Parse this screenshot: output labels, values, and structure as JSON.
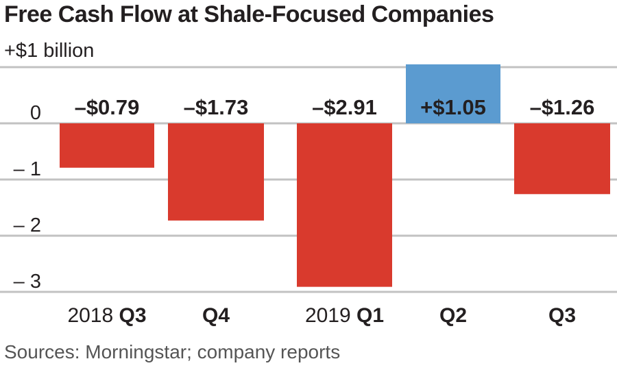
{
  "chart_data": {
    "type": "bar",
    "title": "Free Cash Flow at Shale-Focused Companies",
    "ylabel": "+$1 billion",
    "xlabel": "",
    "ylim": [
      -3,
      1
    ],
    "yticks": [
      {
        "value": 0,
        "label": "0"
      },
      {
        "value": -1,
        "label": "– 1"
      },
      {
        "value": -2,
        "label": "– 2"
      },
      {
        "value": -3,
        "label": "– 3"
      }
    ],
    "grid": true,
    "categories": [
      {
        "year": "2018",
        "quarter": "Q3"
      },
      {
        "year": "",
        "quarter": "Q4"
      },
      {
        "year": "2019",
        "quarter": "Q1"
      },
      {
        "year": "",
        "quarter": "Q2"
      },
      {
        "year": "",
        "quarter": "Q3"
      }
    ],
    "values": [
      -0.79,
      -1.73,
      -2.91,
      1.05,
      -1.26
    ],
    "data_labels": [
      "–$0.79",
      "–$1.73",
      "–$2.91",
      "+$1.05",
      "–$1.26"
    ],
    "colors": {
      "negative": "#d93a2d",
      "positive": "#5b9bd0",
      "grid": "#c2c2c2"
    },
    "source": "Sources: Morningstar; company reports"
  }
}
